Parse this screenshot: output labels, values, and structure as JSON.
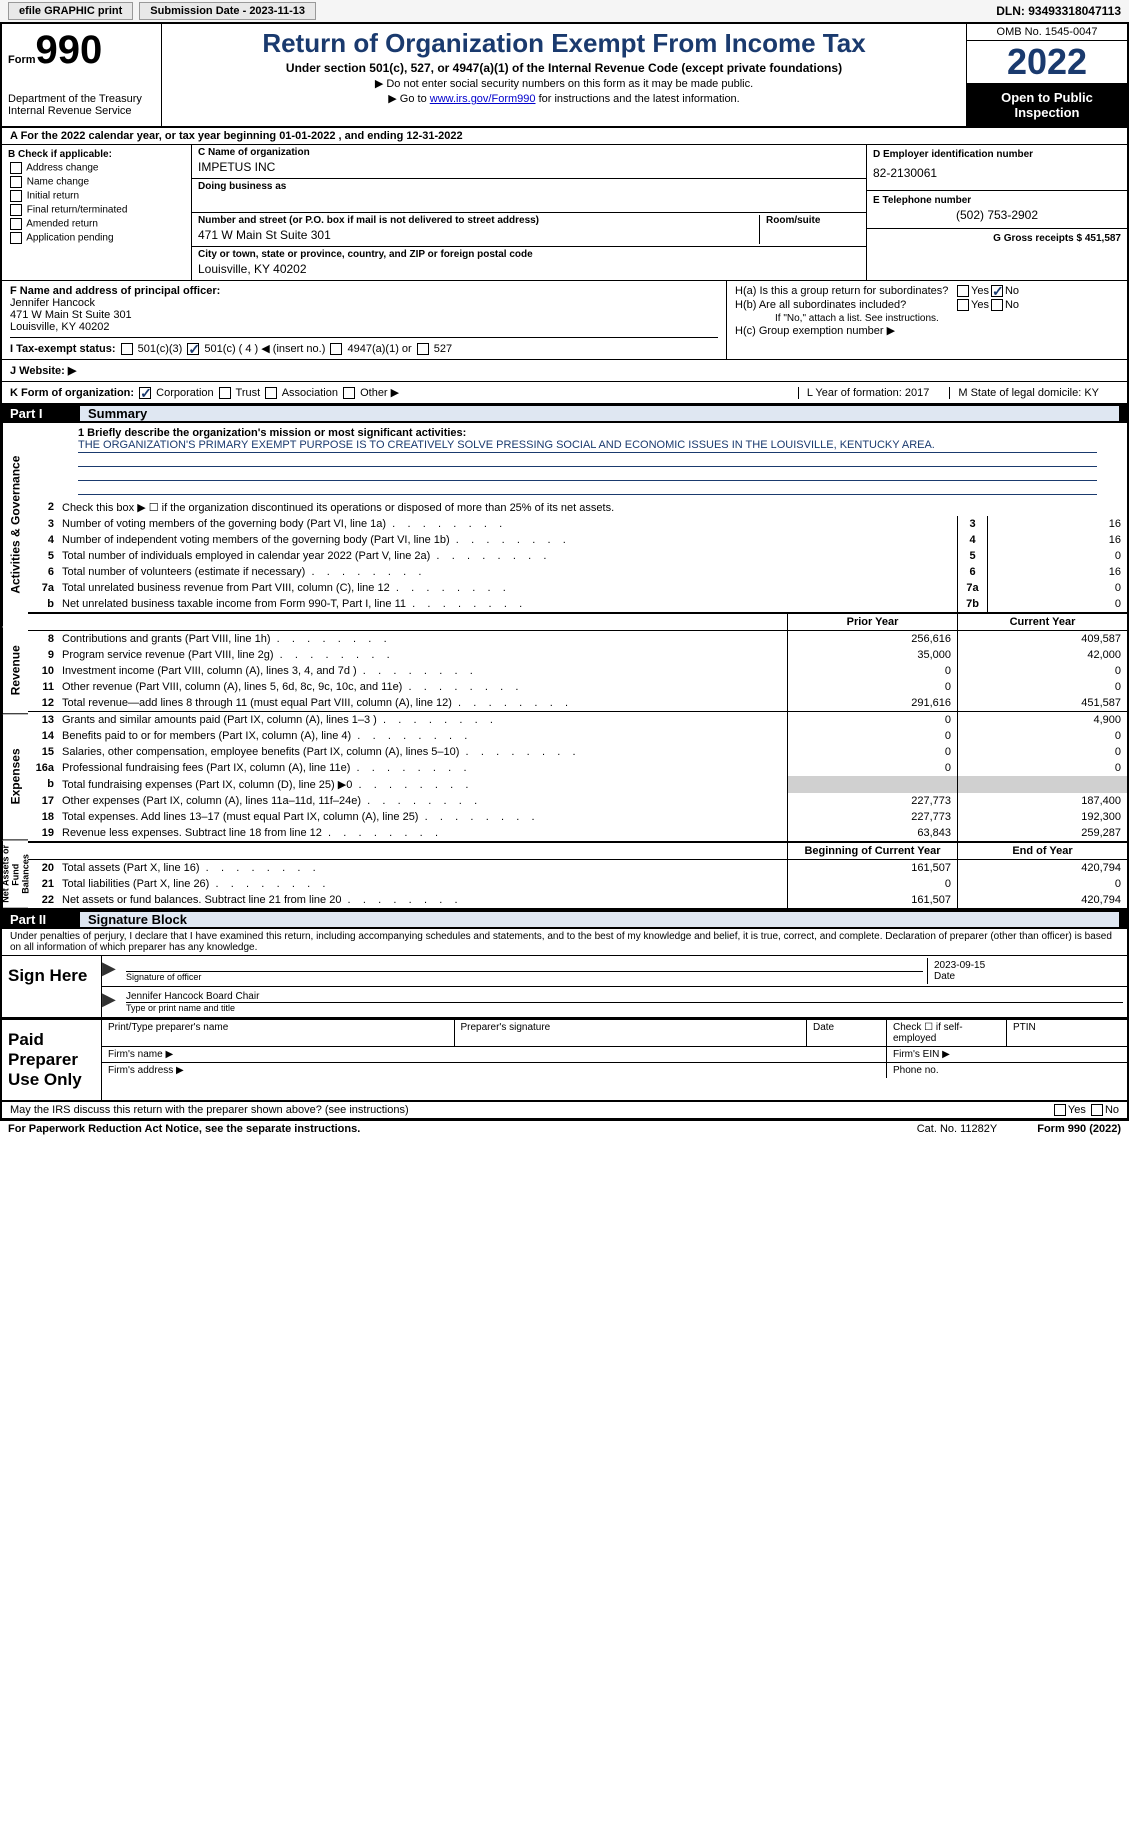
{
  "topbar": {
    "efile_label": "efile GRAPHIC print",
    "submission_label": "Submission Date - 2023-11-13",
    "dln_label": "DLN: 93493318047113"
  },
  "header": {
    "form_word": "Form",
    "form_number": "990",
    "dept": "Department of the Treasury",
    "irs": "Internal Revenue Service",
    "title": "Return of Organization Exempt From Income Tax",
    "subtitle": "Under section 501(c), 527, or 4947(a)(1) of the Internal Revenue Code (except private foundations)",
    "note1": "▶ Do not enter social security numbers on this form as it may be made public.",
    "note2_prefix": "▶ Go to ",
    "note2_link": "www.irs.gov/Form990",
    "note2_suffix": " for instructions and the latest information.",
    "omb": "OMB No. 1545-0047",
    "year": "2022",
    "open": "Open to Public Inspection"
  },
  "row_a": "A For the 2022 calendar year, or tax year beginning 01-01-2022    , and ending 12-31-2022",
  "col_b": {
    "header": "B Check if applicable:",
    "items": [
      "Address change",
      "Name change",
      "Initial return",
      "Final return/terminated",
      "Amended return",
      "Application pending"
    ]
  },
  "col_c": {
    "name_label": "C Name of organization",
    "name": "IMPETUS INC",
    "dba_label": "Doing business as",
    "street_label": "Number and street (or P.O. box if mail is not delivered to street address)",
    "street": "471 W Main St Suite 301",
    "room_label": "Room/suite",
    "city_label": "City or town, state or province, country, and ZIP or foreign postal code",
    "city": "Louisville, KY  40202"
  },
  "col_d": {
    "ein_label": "D Employer identification number",
    "ein": "82-2130061",
    "phone_label": "E Telephone number",
    "phone": "(502) 753-2902",
    "gross_label": "G Gross receipts $ 451,587"
  },
  "f": {
    "label": "F  Name and address of principal officer:",
    "name": "Jennifer Hancock",
    "street": "471 W Main St Suite 301",
    "city": "Louisville, KY  40202"
  },
  "h": {
    "a_label": "H(a)  Is this a group return for subordinates?",
    "b_label": "H(b)  Are all subordinates included?",
    "b_note": "If \"No,\" attach a list. See instructions.",
    "c_label": "H(c)  Group exemption number ▶",
    "yes": "Yes",
    "no": "No"
  },
  "i": {
    "label": "I  Tax-exempt status:",
    "opts": [
      "501(c)(3)",
      "501(c) ( 4 ) ◀ (insert no.)",
      "4947(a)(1) or",
      "527"
    ]
  },
  "j": {
    "label": "J  Website: ▶"
  },
  "k": {
    "label": "K Form of organization:",
    "opts": [
      "Corporation",
      "Trust",
      "Association",
      "Other ▶"
    ],
    "l_label": "L Year of formation: 2017",
    "m_label": "M State of legal domicile: KY"
  },
  "part1": {
    "num": "Part I",
    "title": "Summary"
  },
  "mission": {
    "intro": "1  Briefly describe the organization's mission or most significant activities:",
    "text": "THE ORGANIZATION'S PRIMARY EXEMPT PURPOSE IS TO CREATIVELY SOLVE PRESSING SOCIAL AND ECONOMIC ISSUES IN THE LOUISVILLE, KENTUCKY AREA."
  },
  "lines_gov": [
    {
      "n": "2",
      "d": "Check this box ▶ ☐  if the organization discontinued its operations or disposed of more than 25% of its net assets.",
      "box": "",
      "v": ""
    },
    {
      "n": "3",
      "d": "Number of voting members of the governing body (Part VI, line 1a)",
      "box": "3",
      "v": "16"
    },
    {
      "n": "4",
      "d": "Number of independent voting members of the governing body (Part VI, line 1b)",
      "box": "4",
      "v": "16"
    },
    {
      "n": "5",
      "d": "Total number of individuals employed in calendar year 2022 (Part V, line 2a)",
      "box": "5",
      "v": "0"
    },
    {
      "n": "6",
      "d": "Total number of volunteers (estimate if necessary)",
      "box": "6",
      "v": "16"
    },
    {
      "n": "7a",
      "d": "Total unrelated business revenue from Part VIII, column (C), line 12",
      "box": "7a",
      "v": "0"
    },
    {
      "n": "b",
      "d": "Net unrelated business taxable income from Form 990-T, Part I, line 11",
      "box": "7b",
      "v": "0"
    }
  ],
  "col_headers": {
    "prior": "Prior Year",
    "current": "Current Year"
  },
  "lines_rev": [
    {
      "n": "8",
      "d": "Contributions and grants (Part VIII, line 1h)",
      "p": "256,616",
      "c": "409,587"
    },
    {
      "n": "9",
      "d": "Program service revenue (Part VIII, line 2g)",
      "p": "35,000",
      "c": "42,000"
    },
    {
      "n": "10",
      "d": "Investment income (Part VIII, column (A), lines 3, 4, and 7d )",
      "p": "0",
      "c": "0"
    },
    {
      "n": "11",
      "d": "Other revenue (Part VIII, column (A), lines 5, 6d, 8c, 9c, 10c, and 11e)",
      "p": "0",
      "c": "0"
    },
    {
      "n": "12",
      "d": "Total revenue—add lines 8 through 11 (must equal Part VIII, column (A), line 12)",
      "p": "291,616",
      "c": "451,587"
    }
  ],
  "lines_exp": [
    {
      "n": "13",
      "d": "Grants and similar amounts paid (Part IX, column (A), lines 1–3 )",
      "p": "0",
      "c": "4,900"
    },
    {
      "n": "14",
      "d": "Benefits paid to or for members (Part IX, column (A), line 4)",
      "p": "0",
      "c": "0"
    },
    {
      "n": "15",
      "d": "Salaries, other compensation, employee benefits (Part IX, column (A), lines 5–10)",
      "p": "0",
      "c": "0"
    },
    {
      "n": "16a",
      "d": "Professional fundraising fees (Part IX, column (A), line 11e)",
      "p": "0",
      "c": "0"
    },
    {
      "n": "b",
      "d": "Total fundraising expenses (Part IX, column (D), line 25) ▶0",
      "p": "shade",
      "c": "shade"
    },
    {
      "n": "17",
      "d": "Other expenses (Part IX, column (A), lines 11a–11d, 11f–24e)",
      "p": "227,773",
      "c": "187,400"
    },
    {
      "n": "18",
      "d": "Total expenses. Add lines 13–17 (must equal Part IX, column (A), line 25)",
      "p": "227,773",
      "c": "192,300"
    },
    {
      "n": "19",
      "d": "Revenue less expenses. Subtract line 18 from line 12",
      "p": "63,843",
      "c": "259,287"
    }
  ],
  "col_headers2": {
    "begin": "Beginning of Current Year",
    "end": "End of Year"
  },
  "lines_net": [
    {
      "n": "20",
      "d": "Total assets (Part X, line 16)",
      "p": "161,507",
      "c": "420,794"
    },
    {
      "n": "21",
      "d": "Total liabilities (Part X, line 26)",
      "p": "0",
      "c": "0"
    },
    {
      "n": "22",
      "d": "Net assets or fund balances. Subtract line 21 from line 20",
      "p": "161,507",
      "c": "420,794"
    }
  ],
  "vlabels": {
    "gov": "Activities & Governance",
    "rev": "Revenue",
    "exp": "Expenses",
    "net": "Net Assets or Fund Balances"
  },
  "part2": {
    "num": "Part II",
    "title": "Signature Block"
  },
  "sig_intro": "Under penalties of perjury, I declare that I have examined this return, including accompanying schedules and statements, and to the best of my knowledge and belief, it is true, correct, and complete. Declaration of preparer (other than officer) is based on all information of which preparer has any knowledge.",
  "sign": {
    "label": "Sign Here",
    "sig_of_officer": "Signature of officer",
    "date": "2023-09-15",
    "date_label": "Date",
    "name": "Jennifer Hancock  Board Chair",
    "name_label": "Type or print name and title"
  },
  "preparer": {
    "label": "Paid Preparer Use Only",
    "print_name": "Print/Type preparer's name",
    "prep_sig": "Preparer's signature",
    "date": "Date",
    "check_self": "Check ☐ if self-employed",
    "ptin": "PTIN",
    "firm_name": "Firm's name    ▶",
    "firm_ein": "Firm's EIN ▶",
    "firm_addr": "Firm's address ▶",
    "phone": "Phone no."
  },
  "discuss": "May the IRS discuss this return with the preparer shown above? (see instructions)",
  "bottom": {
    "left": "For Paperwork Reduction Act Notice, see the separate instructions.",
    "center": "Cat. No. 11282Y",
    "right": "Form 990 (2022)"
  }
}
